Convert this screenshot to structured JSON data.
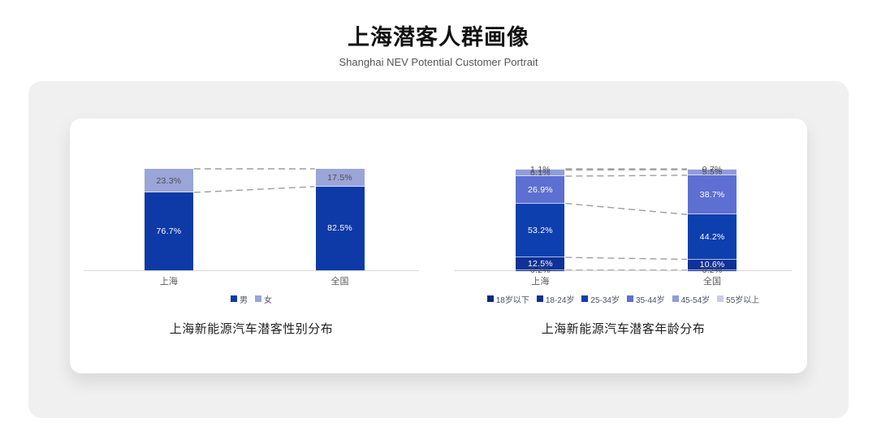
{
  "page": {
    "title": "上海潜客人群画像",
    "subtitle": "Shanghai NEV Potential Customer Portrait"
  },
  "colors": {
    "panel_bg": "#f0f0f1",
    "card_bg": "#ffffff",
    "axis": "#d9d9d9",
    "connector": "#9e9e9e",
    "value_label_dark": "#4f4f4f",
    "value_label_light": "#ffffff",
    "category_label": "#595959",
    "legend_text": "#4b4f66"
  },
  "chart_data": [
    {
      "type": "bar",
      "variant": "stacked-percentage",
      "title": "上海新能源汽车潜客性别分布",
      "categories": [
        "上海",
        "全国"
      ],
      "unit": "%",
      "ylim": [
        0,
        100
      ],
      "grid": false,
      "legend_position": "bottom",
      "connector_lines": "dashed",
      "series": [
        {
          "name": "男",
          "color": "#0d3aa6",
          "values": [
            76.7,
            82.5
          ]
        },
        {
          "name": "女",
          "color": "#9aa5d8",
          "values": [
            23.3,
            17.5
          ]
        }
      ]
    },
    {
      "type": "bar",
      "variant": "stacked-percentage",
      "title": "上海新能源汽车潜客年龄分布",
      "categories": [
        "上海",
        "全国"
      ],
      "unit": "%",
      "ylim": [
        0,
        100
      ],
      "grid": false,
      "legend_position": "bottom",
      "connector_lines": "dashed",
      "series": [
        {
          "name": "18岁以下",
          "color": "#0a2a7c",
          "values": [
            0.2,
            0.2
          ]
        },
        {
          "name": "18-24岁",
          "color": "#0f3198",
          "values": [
            12.5,
            10.6
          ]
        },
        {
          "name": "25-34岁",
          "color": "#0d3fae",
          "values": [
            53.2,
            44.2
          ]
        },
        {
          "name": "35-44岁",
          "color": "#5d6fd2",
          "values": [
            26.9,
            38.7
          ]
        },
        {
          "name": "45-54岁",
          "color": "#8f9dd9",
          "values": [
            6.1,
            5.5
          ]
        },
        {
          "name": "55岁以上",
          "color": "#c6cdeb",
          "values": [
            1.1,
            0.7
          ]
        }
      ]
    }
  ]
}
